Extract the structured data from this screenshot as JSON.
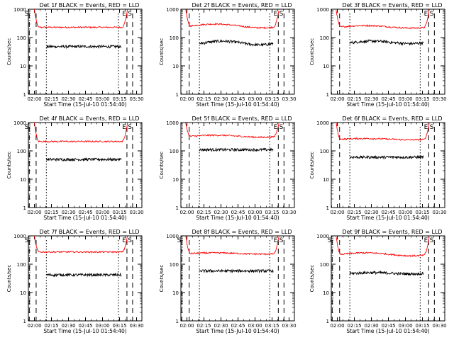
{
  "chart_data": [
    {
      "type": "line",
      "title": "Det 1f BLACK = Events, RED = LLD",
      "xlabel": "Start Time (15-Jul-10 01:54:40)",
      "ylabel": "Counts/sec",
      "yscale": "log",
      "ylim": [
        1,
        1000
      ],
      "y_ticks": [
        "1",
        "10",
        "100",
        "1000"
      ],
      "x_ticks": [
        "02:00",
        "02:15",
        "02:30",
        "02:45",
        "03:00",
        "03:15",
        "03:30"
      ],
      "xlim": [
        "01:54:40",
        "03:34:40"
      ],
      "markers": [
        {
          "label": "S",
          "time": "01:55:30",
          "style": "dashed"
        },
        {
          "label": "",
          "time": "02:01:30",
          "style": "dashed"
        },
        {
          "label": "",
          "time": "02:10:30",
          "style": "dotted"
        },
        {
          "label": "",
          "time": "03:14:00",
          "style": "dotted"
        },
        {
          "label": "E",
          "time": "03:21:30",
          "style": "dashed"
        },
        {
          "label": "S",
          "time": "03:26:30",
          "style": "dashed"
        }
      ],
      "series": [
        {
          "color": "#ff0000",
          "start": "02:00:00",
          "end": "03:22:00",
          "base": 230,
          "bump": 0.0
        },
        {
          "color": "#000000",
          "start": "02:10:30",
          "end": "03:16:30",
          "base": 48,
          "bump": 0.0
        }
      ]
    },
    {
      "type": "line",
      "title": "Det 2f BLACK = Events, RED = LLD",
      "xlabel": "Start Time (15-Jul-10 01:54:40)",
      "ylabel": "Counts/sec",
      "yscale": "log",
      "ylim": [
        1,
        1000
      ],
      "y_ticks": [
        "1",
        "10",
        "100",
        "1000"
      ],
      "x_ticks": [
        "02:00",
        "02:15",
        "02:30",
        "02:45",
        "03:00",
        "03:15",
        "03:30"
      ],
      "xlim": [
        "01:54:40",
        "03:34:40"
      ],
      "markers": [
        {
          "label": "",
          "time": "02:02:00",
          "style": "dashed"
        },
        {
          "label": "",
          "time": "02:11:00",
          "style": "dotted"
        },
        {
          "label": "",
          "time": "03:13:00",
          "style": "dotted"
        },
        {
          "label": "E",
          "time": "03:20:30",
          "style": "dashed"
        },
        {
          "label": "S",
          "time": "03:25:30",
          "style": "dashed"
        }
      ],
      "series": [
        {
          "color": "#ff0000",
          "start": "01:59:00",
          "end": "03:21:00",
          "base": 260,
          "bump": 0.15
        },
        {
          "color": "#000000",
          "start": "02:11:00",
          "end": "03:16:00",
          "base": 65,
          "bump": 0.15
        }
      ]
    },
    {
      "type": "line",
      "title": "Det 3f BLACK = Events, RED = LLD",
      "xlabel": "Start Time (15-Jul-10 01:54:40)",
      "ylabel": "Counts/sec",
      "yscale": "log",
      "ylim": [
        1,
        1000
      ],
      "y_ticks": [
        "1",
        "10",
        "100",
        "1000"
      ],
      "x_ticks": [
        "02:00",
        "02:15",
        "02:30",
        "02:45",
        "03:00",
        "03:15",
        "03:30"
      ],
      "xlim": [
        "01:54:40",
        "03:34:40"
      ],
      "markers": [
        {
          "label": "",
          "time": "02:02:00",
          "style": "dashed"
        },
        {
          "label": "",
          "time": "02:11:00",
          "style": "dotted"
        },
        {
          "label": "",
          "time": "03:13:00",
          "style": "dotted"
        },
        {
          "label": "E",
          "time": "03:20:30",
          "style": "dashed"
        },
        {
          "label": "S",
          "time": "03:25:30",
          "style": "dashed"
        }
      ],
      "series": [
        {
          "color": "#ff0000",
          "start": "01:59:00",
          "end": "03:21:00",
          "base": 240,
          "bump": 0.1
        },
        {
          "color": "#000000",
          "start": "02:11:00",
          "end": "03:16:00",
          "base": 68,
          "bump": 0.1
        }
      ]
    },
    {
      "type": "line",
      "title": "Det 4f BLACK = Events, RED = LLD",
      "xlabel": "Start Time (15-Jul-10 01:54:40)",
      "ylabel": "Counts/sec",
      "yscale": "log",
      "ylim": [
        1,
        1000
      ],
      "y_ticks": [
        "1",
        "10",
        "100",
        "1000"
      ],
      "x_ticks": [
        "02:00",
        "02:15",
        "02:30",
        "02:45",
        "03:00",
        "03:15",
        "03:30"
      ],
      "xlim": [
        "01:54:40",
        "03:34:40"
      ],
      "markers": [
        {
          "label": "S",
          "time": "01:55:30",
          "style": "dashed"
        },
        {
          "label": "",
          "time": "02:01:30",
          "style": "dashed"
        },
        {
          "label": "",
          "time": "02:10:30",
          "style": "dotted"
        },
        {
          "label": "E",
          "time": "03:21:30",
          "style": "dashed"
        },
        {
          "label": "S",
          "time": "03:26:30",
          "style": "dashed"
        }
      ],
      "series": [
        {
          "color": "#ff0000",
          "start": "02:00:00",
          "end": "03:22:00",
          "base": 215,
          "bump": 0.0
        },
        {
          "color": "#000000",
          "start": "02:10:30",
          "end": "03:16:30",
          "base": 50,
          "bump": 0.0
        }
      ]
    },
    {
      "type": "line",
      "title": "Det 5f BLACK = Events, RED = LLD",
      "xlabel": "Start Time (15-Jul-10 01:54:40)",
      "ylabel": "Counts/sec",
      "yscale": "log",
      "ylim": [
        1,
        1000
      ],
      "y_ticks": [
        "1",
        "10",
        "100",
        "1000"
      ],
      "x_ticks": [
        "02:00",
        "02:15",
        "02:30",
        "02:45",
        "03:00",
        "03:15",
        "03:30"
      ],
      "xlim": [
        "01:54:40",
        "03:34:40"
      ],
      "markers": [
        {
          "label": "",
          "time": "02:02:00",
          "style": "dashed"
        },
        {
          "label": "",
          "time": "02:11:00",
          "style": "dotted"
        },
        {
          "label": "",
          "time": "03:13:00",
          "style": "dotted"
        },
        {
          "label": "E",
          "time": "03:20:30",
          "style": "dashed"
        },
        {
          "label": "S",
          "time": "03:25:30",
          "style": "dashed"
        }
      ],
      "series": [
        {
          "color": "#ff0000",
          "start": "01:59:00",
          "end": "03:21:00",
          "base": 330,
          "bump": 0.08
        },
        {
          "color": "#000000",
          "start": "02:11:00",
          "end": "03:16:00",
          "base": 110,
          "bump": 0.0
        }
      ]
    },
    {
      "type": "line",
      "title": "Det 6f BLACK = Events, RED = LLD",
      "xlabel": "Start Time (15-Jul-10 01:54:40)",
      "ylabel": "Counts/sec",
      "yscale": "log",
      "ylim": [
        1,
        1000
      ],
      "y_ticks": [
        "1",
        "10",
        "100",
        "1000"
      ],
      "x_ticks": [
        "02:00",
        "02:15",
        "02:30",
        "02:45",
        "03:00",
        "03:15",
        "03:30"
      ],
      "xlim": [
        "01:54:40",
        "03:34:40"
      ],
      "markers": [
        {
          "label": "",
          "time": "02:02:00",
          "style": "dashed"
        },
        {
          "label": "",
          "time": "02:11:00",
          "style": "dotted"
        },
        {
          "label": "",
          "time": "03:13:00",
          "style": "dotted"
        },
        {
          "label": "E",
          "time": "03:20:30",
          "style": "dashed"
        },
        {
          "label": "S",
          "time": "03:25:30",
          "style": "dashed"
        }
      ],
      "series": [
        {
          "color": "#ff0000",
          "start": "01:59:00",
          "end": "03:21:00",
          "base": 260,
          "bump": 0.05
        },
        {
          "color": "#000000",
          "start": "02:11:00",
          "end": "03:16:00",
          "base": 60,
          "bump": 0.0
        }
      ]
    },
    {
      "type": "line",
      "title": "Det 7f BLACK = Events, RED = LLD",
      "xlabel": "Start Time (15-Jul-10 01:54:40)",
      "ylabel": "Counts/sec",
      "yscale": "log",
      "ylim": [
        1,
        1000
      ],
      "y_ticks": [
        "1",
        "10",
        "100",
        "1000"
      ],
      "x_ticks": [
        "02:00",
        "02:15",
        "02:30",
        "02:45",
        "03:00",
        "03:15",
        "03:30"
      ],
      "xlim": [
        "01:54:40",
        "03:34:40"
      ],
      "markers": [
        {
          "label": "S",
          "time": "01:55:30",
          "style": "dashed"
        },
        {
          "label": "",
          "time": "02:01:30",
          "style": "dashed"
        },
        {
          "label": "",
          "time": "02:10:30",
          "style": "dotted"
        },
        {
          "label": "",
          "time": "03:14:00",
          "style": "dotted"
        },
        {
          "label": "E",
          "time": "03:21:30",
          "style": "dashed"
        },
        {
          "label": "S",
          "time": "03:26:30",
          "style": "dashed"
        }
      ],
      "series": [
        {
          "color": "#ff0000",
          "start": "02:00:00",
          "end": "03:22:00",
          "base": 270,
          "bump": 0.0
        },
        {
          "color": "#000000",
          "start": "02:10:30",
          "end": "03:16:30",
          "base": 42,
          "bump": 0.0
        }
      ]
    },
    {
      "type": "line",
      "title": "Det 8f BLACK = Events, RED = LLD",
      "xlabel": "Start Time (15-Jul-10 01:54:40)",
      "ylabel": "Counts/sec",
      "yscale": "log",
      "ylim": [
        1,
        1000
      ],
      "y_ticks": [
        "1",
        "10",
        "100",
        "1000"
      ],
      "x_ticks": [
        "02:00",
        "02:15",
        "02:30",
        "02:45",
        "03:00",
        "03:15",
        "03:30"
      ],
      "xlim": [
        "01:54:40",
        "03:34:40"
      ],
      "markers": [
        {
          "label": "S",
          "time": "01:55:30",
          "style": "dashed"
        },
        {
          "label": "",
          "time": "02:02:00",
          "style": "dashed"
        },
        {
          "label": "",
          "time": "02:11:00",
          "style": "dotted"
        },
        {
          "label": "",
          "time": "03:13:00",
          "style": "dotted"
        },
        {
          "label": "E",
          "time": "03:20:30",
          "style": "dashed"
        },
        {
          "label": "S",
          "time": "03:25:30",
          "style": "dashed"
        }
      ],
      "series": [
        {
          "color": "#ff0000",
          "start": "01:59:00",
          "end": "03:21:00",
          "base": 240,
          "bump": 0.05
        },
        {
          "color": "#000000",
          "start": "02:11:00",
          "end": "03:16:00",
          "base": 58,
          "bump": 0.0
        }
      ]
    },
    {
      "type": "line",
      "title": "Det 9f BLACK = Events, RED = LLD",
      "xlabel": "Start Time (15-Jul-10 01:54:40)",
      "ylabel": "Counts/sec",
      "yscale": "log",
      "ylim": [
        1,
        1000
      ],
      "y_ticks": [
        "1",
        "10",
        "100",
        "1000"
      ],
      "x_ticks": [
        "02:00",
        "02:15",
        "02:30",
        "02:45",
        "03:00",
        "03:15",
        "03:30"
      ],
      "xlim": [
        "01:54:40",
        "03:34:40"
      ],
      "markers": [
        {
          "label": "S",
          "time": "01:55:30",
          "style": "dashed"
        },
        {
          "label": "",
          "time": "02:02:00",
          "style": "dashed"
        },
        {
          "label": "",
          "time": "02:11:00",
          "style": "dotted"
        },
        {
          "label": "",
          "time": "03:13:00",
          "style": "dotted"
        },
        {
          "label": "E",
          "time": "03:20:30",
          "style": "dashed"
        },
        {
          "label": "S",
          "time": "03:25:30",
          "style": "dashed"
        }
      ],
      "series": [
        {
          "color": "#ff0000",
          "start": "01:59:00",
          "end": "03:21:00",
          "base": 225,
          "bump": 0.12
        },
        {
          "color": "#000000",
          "start": "02:11:00",
          "end": "03:16:00",
          "base": 48,
          "bump": 0.05
        }
      ]
    }
  ]
}
